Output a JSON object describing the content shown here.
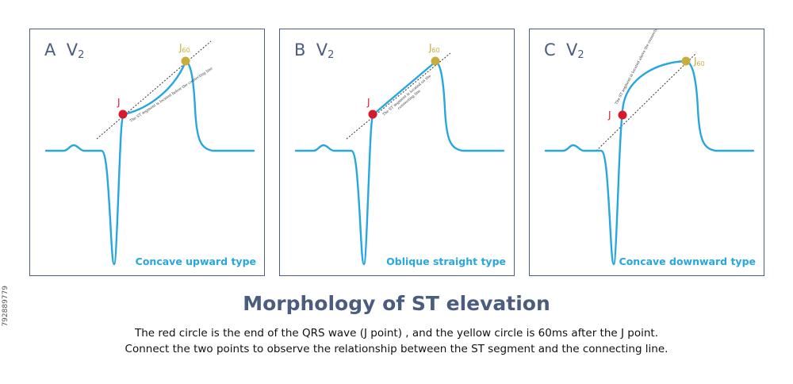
{
  "panels": [
    {
      "letter": "A",
      "lead": "V",
      "lead_sub": "2",
      "caption": "Concave upward type",
      "j_label": "J",
      "j60_label": "J",
      "j60_sub": "60",
      "annotation": "The ST segment is located below the connecting line"
    },
    {
      "letter": "B",
      "lead": "V",
      "lead_sub": "2",
      "caption": "Oblique straight type",
      "j_label": "J",
      "j60_label": "J",
      "j60_sub": "60",
      "annotation_line1": "The ST segment is located on the",
      "annotation_line2": "connecting line"
    },
    {
      "letter": "C",
      "lead": "V",
      "lead_sub": "2",
      "caption": "Concave downward type",
      "j_label": "J",
      "j60_label": "J",
      "j60_sub": "60",
      "annotation": "The ST segment is located above the connecting line"
    }
  ],
  "heading": "Morphology of ST elevation",
  "description_line1": "The red circle is the end of the QRS wave (J point) , and the yellow circle is 60ms after the J point.",
  "description_line2": "Connect the two points to observe the relationship between the ST segment and the connecting line.",
  "stock_id": "792889779",
  "colors": {
    "ecg_line": "#27a7df",
    "j_point": "#d8192c",
    "j60_point": "#c9ad3c",
    "border": "#4a5d7e",
    "heading": "#4a5d7e"
  }
}
